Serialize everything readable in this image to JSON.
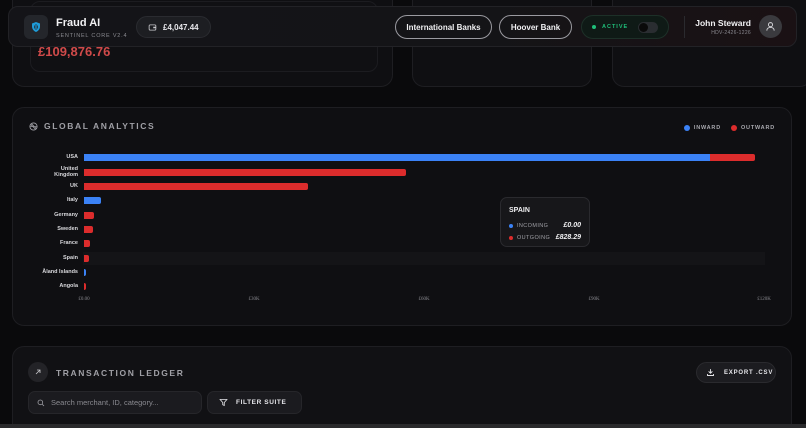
{
  "header": {
    "brand_title": "Fraud AI",
    "brand_subtitle": "SENTINEL CORE V2.4",
    "balance": "£4,047.44",
    "bank_buttons": [
      "International Banks",
      "Hoover Bank"
    ],
    "status_label": "ACTIVE",
    "status_color": "#1fbf7a",
    "user_name": "John Steward",
    "user_id": "HDV-2426-1226"
  },
  "stats": {
    "card1_value": "£109,876.76"
  },
  "analytics": {
    "title": "GLOBAL ANALYTICS",
    "legend": [
      {
        "label": "INWARD",
        "color": "#3b82f6"
      },
      {
        "label": "OUTWARD",
        "color": "#dc2c2c"
      }
    ],
    "tooltip": {
      "title": "SPAIN",
      "incoming_label": "INCOMING",
      "incoming_value": "£0.00",
      "outgoing_label": "OUTGOING",
      "outgoing_value": "£828.29"
    }
  },
  "chart_data": {
    "type": "bar",
    "orientation": "horizontal",
    "stacked": true,
    "title": "GLOBAL ANALYTICS",
    "categories": [
      "USA",
      "United Kingdom",
      "UK",
      "Italy",
      "Germany",
      "Sweden",
      "France",
      "Spain",
      "Åland Islands",
      "Angola"
    ],
    "series": [
      {
        "name": "INWARD",
        "color": "#3b82f6",
        "values": [
          110500,
          0,
          0,
          3000,
          0,
          0,
          0,
          0,
          300,
          0
        ]
      },
      {
        "name": "OUTWARD",
        "color": "#dc2c2c",
        "values": [
          8000,
          56800,
          39500,
          0,
          1700,
          1500,
          1000,
          828.29,
          0,
          250
        ]
      }
    ],
    "x_ticks": [
      "£0.00",
      "£30K",
      "£60K",
      "£90K",
      "£120K"
    ],
    "xlim": [
      0,
      120000
    ],
    "legend_position": "top-right",
    "grid": false,
    "highlighted_category": "Spain"
  },
  "ledger": {
    "title": "TRANSACTION LEDGER",
    "export_label": "EXPORT .CSV",
    "search_placeholder": "Search merchant, ID, category...",
    "filter_label": "FILTER SUITE"
  }
}
